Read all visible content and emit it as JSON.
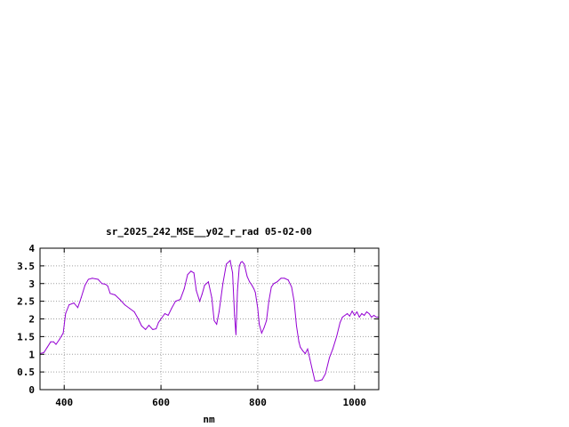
{
  "chart_data": {
    "type": "line",
    "title": "sr_2025_242_MSE__y02_r_rad 05-02-00",
    "xlabel": "nm",
    "ylabel": "",
    "xlim": [
      350,
      1050
    ],
    "ylim": [
      0,
      4
    ],
    "xticks": [
      400,
      600,
      800,
      1000
    ],
    "yticks": [
      0,
      0.5,
      1,
      1.5,
      2,
      2.5,
      3,
      3.5,
      4
    ],
    "xtick_labels": [
      "400",
      "600",
      "800",
      "1000"
    ],
    "ytick_labels": [
      "0",
      "0.5",
      "1",
      "1.5",
      "2",
      "2.5",
      "3",
      "3.5",
      "4"
    ],
    "grid": true,
    "line_color": "#9400d3",
    "series": [
      {
        "x": [
          350,
          358,
          365,
          372,
          378,
          383,
          390,
          398,
          403,
          410,
          420,
          428,
          435,
          443,
          450,
          458,
          470,
          478,
          485,
          490,
          495,
          500,
          505,
          515,
          525,
          535,
          545,
          553,
          560,
          568,
          575,
          583,
          590,
          595,
          600,
          608,
          615,
          622,
          630,
          640,
          648,
          655,
          662,
          668,
          673,
          680,
          685,
          690,
          698,
          705,
          710,
          715,
          720,
          728,
          735,
          743,
          748,
          752,
          755,
          758,
          762,
          765,
          768,
          772,
          778,
          783,
          788,
          792,
          795,
          800,
          803,
          808,
          813,
          818,
          823,
          828,
          833,
          840,
          848,
          855,
          863,
          870,
          875,
          880,
          885,
          888,
          893,
          898,
          903,
          908,
          913,
          918,
          925,
          933,
          940,
          948,
          955,
          963,
          970,
          975,
          980,
          985,
          990,
          995,
          1000,
          1005,
          1010,
          1015,
          1020,
          1025,
          1030,
          1035,
          1040,
          1045,
          1050
        ],
        "y": [
          1.02,
          1.05,
          1.2,
          1.35,
          1.35,
          1.28,
          1.42,
          1.6,
          2.15,
          2.4,
          2.45,
          2.32,
          2.6,
          2.95,
          3.12,
          3.15,
          3.12,
          3.0,
          2.98,
          2.93,
          2.72,
          2.7,
          2.68,
          2.55,
          2.4,
          2.3,
          2.2,
          2.0,
          1.8,
          1.7,
          1.82,
          1.7,
          1.72,
          1.9,
          2.0,
          2.15,
          2.1,
          2.3,
          2.5,
          2.55,
          2.85,
          3.25,
          3.35,
          3.3,
          2.8,
          2.5,
          2.7,
          2.95,
          3.05,
          2.6,
          1.95,
          1.85,
          2.2,
          3.0,
          3.55,
          3.65,
          3.3,
          2.1,
          1.55,
          2.8,
          3.5,
          3.6,
          3.62,
          3.55,
          3.2,
          3.05,
          2.95,
          2.85,
          2.75,
          2.3,
          1.85,
          1.6,
          1.75,
          1.95,
          2.5,
          2.9,
          3.0,
          3.05,
          3.15,
          3.15,
          3.1,
          2.9,
          2.5,
          1.8,
          1.35,
          1.2,
          1.1,
          1.02,
          1.15,
          0.85,
          0.55,
          0.25,
          0.25,
          0.28,
          0.45,
          0.9,
          1.15,
          1.5,
          1.9,
          2.05,
          2.1,
          2.15,
          2.08,
          2.22,
          2.1,
          2.2,
          2.05,
          2.15,
          2.1,
          2.2,
          2.15,
          2.05,
          2.1,
          2.05,
          2.05
        ]
      }
    ]
  }
}
